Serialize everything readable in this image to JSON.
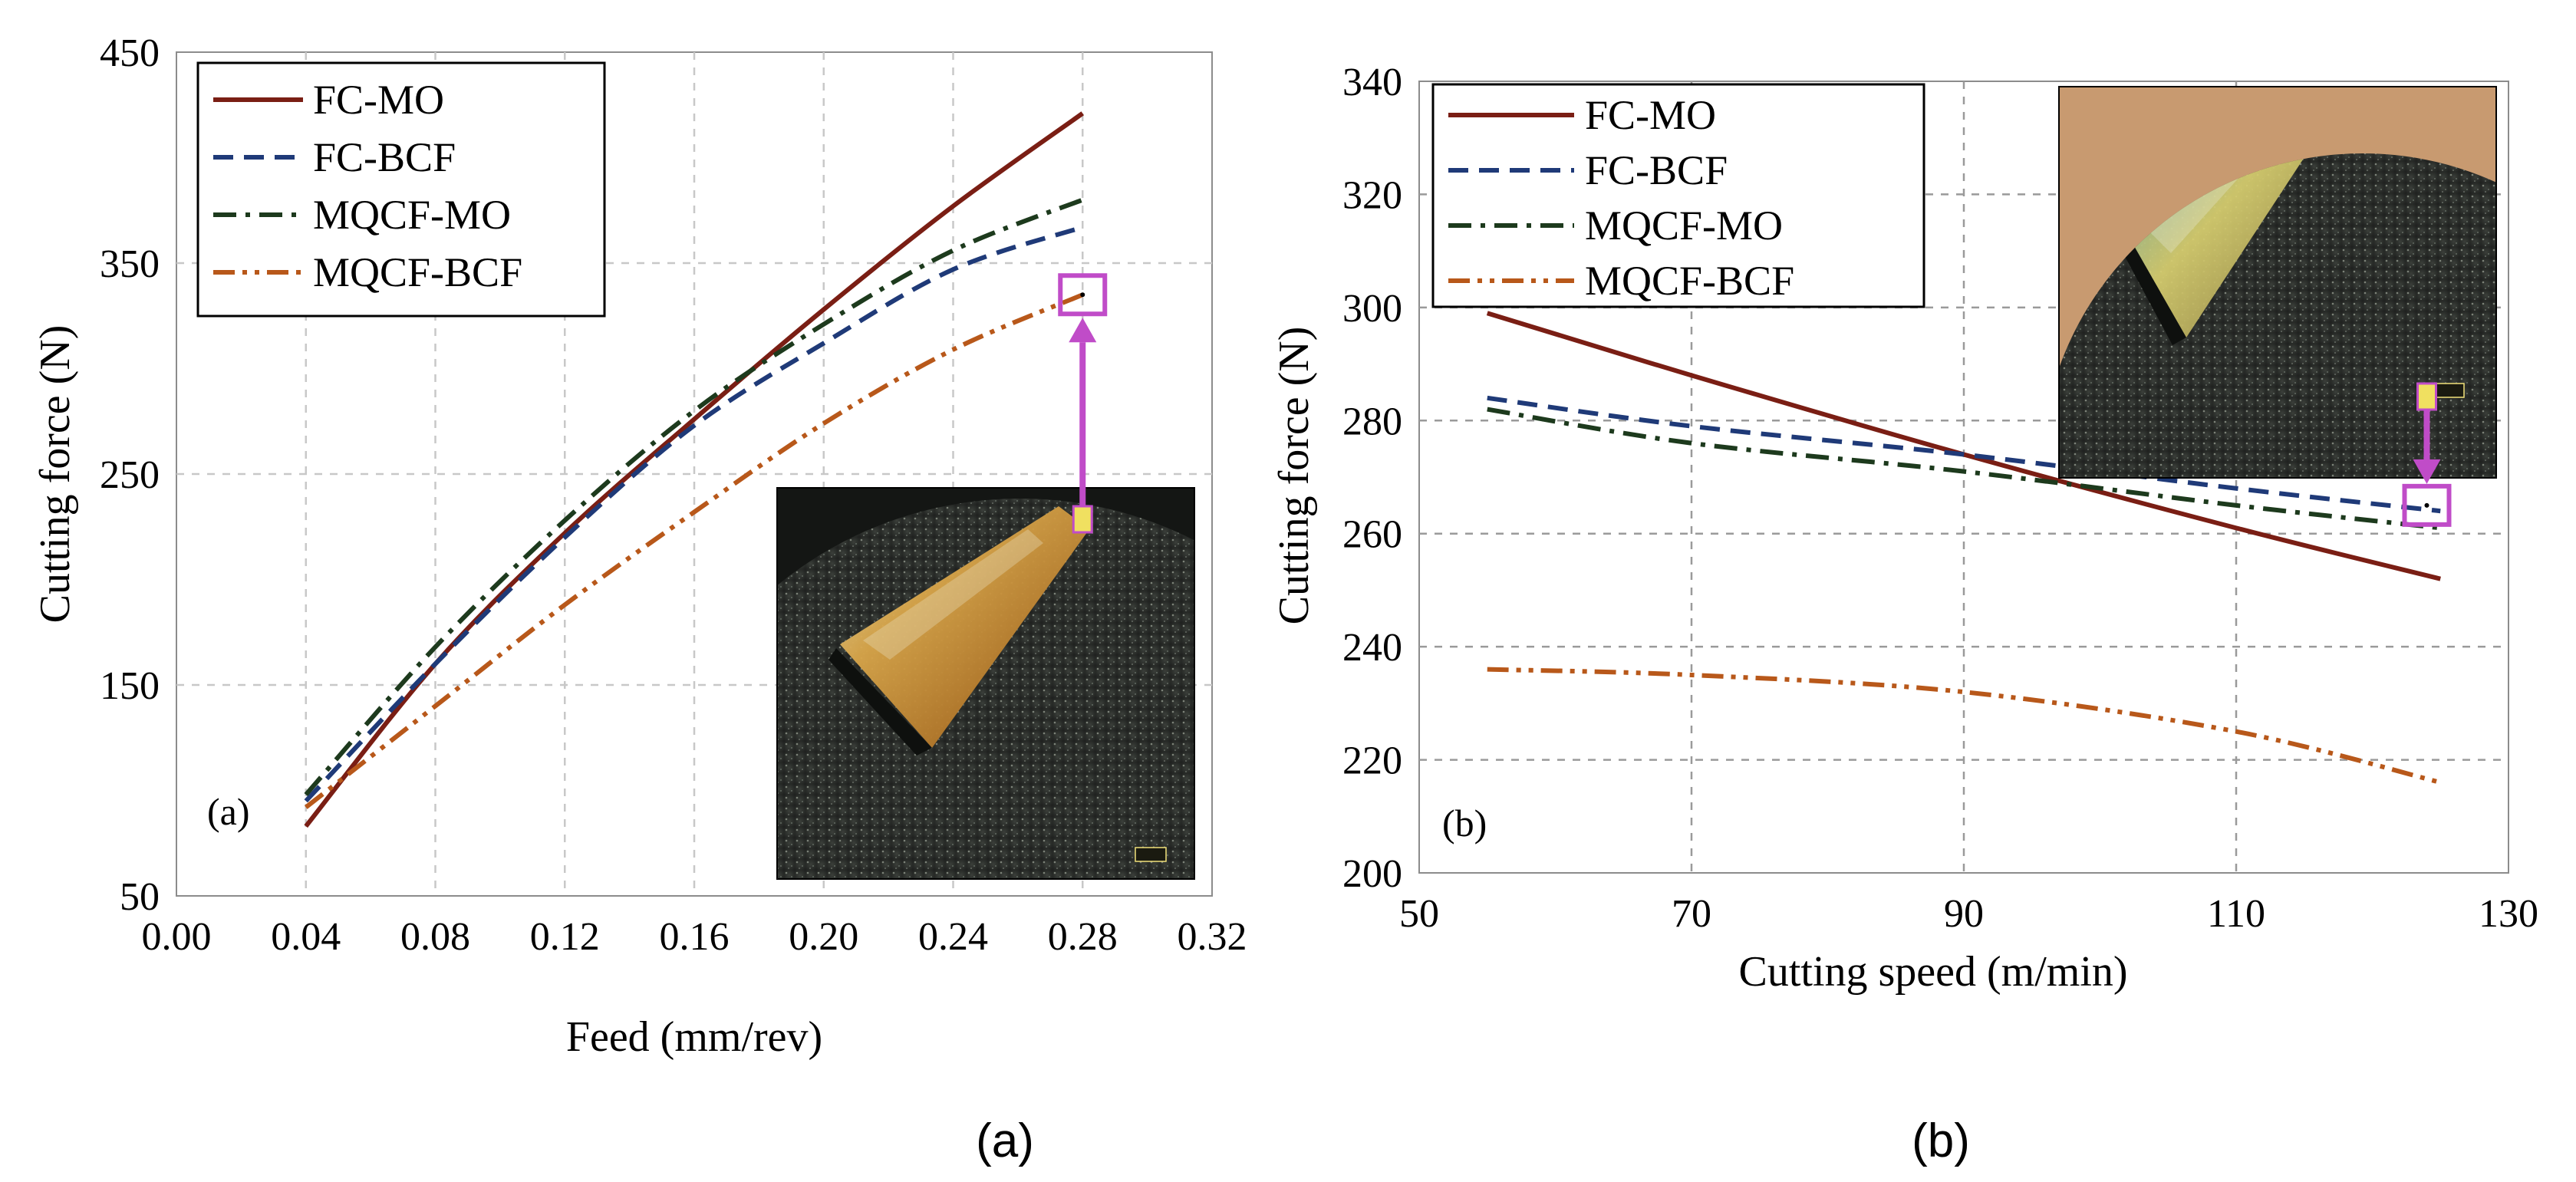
{
  "chart_data": [
    {
      "type": "line",
      "panel_label": "(a)",
      "caption": "(a)",
      "xlabel": "Feed (mm/rev)",
      "ylabel": "Cutting force (N)",
      "xlim": [
        0.0,
        0.32
      ],
      "ylim": [
        50,
        450
      ],
      "xticks": [
        0.0,
        0.04,
        0.08,
        0.12,
        0.16,
        0.2,
        0.24,
        0.28,
        0.32
      ],
      "xtick_labels": [
        "0.00",
        "0.04",
        "0.08",
        "0.12",
        "0.16",
        "0.20",
        "0.24",
        "0.28",
        "0.32"
      ],
      "yticks": [
        50,
        150,
        250,
        350,
        450
      ],
      "ytick_labels": [
        "50",
        "150",
        "250",
        "350",
        "450"
      ],
      "grid": true,
      "legend_position": "top-left",
      "x": [
        0.04,
        0.08,
        0.12,
        0.16,
        0.2,
        0.24,
        0.28
      ],
      "series": [
        {
          "name": "FC-MO",
          "values": [
            83,
            160,
            222,
            276,
            328,
            377,
            421
          ],
          "color": "#7a1e14",
          "dash": "solid"
        },
        {
          "name": "FC-BCF",
          "values": [
            95,
            160,
            220,
            273,
            312,
            347,
            367
          ],
          "color": "#1f3a78",
          "dash": "dash"
        },
        {
          "name": "MQCF-MO",
          "values": [
            98,
            168,
            228,
            280,
            321,
            356,
            380
          ],
          "color": "#1d3a1d",
          "dash": "dashdot"
        },
        {
          "name": "MQCF-BCF",
          "values": [
            92,
            140,
            188,
            232,
            274,
            309,
            335
          ],
          "color": "#b8581a",
          "dash": "dashdotdot"
        }
      ],
      "highlight_point": {
        "x": 0.28,
        "y": 335
      },
      "inset": {
        "description_colors": [
          "#2a2c2a",
          "#d2a24a",
          "#6aa0a8"
        ],
        "highlight_color": "#c04cc8"
      }
    },
    {
      "type": "line",
      "panel_label": "(b)",
      "caption": "(b)",
      "xlabel": "Cutting speed (m/min)",
      "ylabel": "Cutting force (N)",
      "xlim": [
        50,
        130
      ],
      "ylim": [
        200,
        340
      ],
      "xticks": [
        50,
        70,
        90,
        110,
        130
      ],
      "xtick_labels": [
        "50",
        "70",
        "90",
        "110",
        "130"
      ],
      "yticks": [
        200,
        220,
        240,
        260,
        280,
        300,
        320,
        340
      ],
      "ytick_labels": [
        "200",
        "220",
        "240",
        "260",
        "280",
        "300",
        "320",
        "340"
      ],
      "grid": true,
      "legend_position": "top-left",
      "x": [
        55,
        70,
        90,
        110,
        125
      ],
      "series": [
        {
          "name": "FC-MO",
          "values": [
            299,
            288,
            274,
            261,
            252
          ],
          "color": "#7a1e14",
          "dash": "solid"
        },
        {
          "name": "FC-BCF",
          "values": [
            284,
            279,
            274,
            268,
            264
          ],
          "color": "#1f3a78",
          "dash": "dash"
        },
        {
          "name": "MQCF-MO",
          "values": [
            282,
            276,
            271,
            265,
            261
          ],
          "color": "#1d3a1d",
          "dash": "dashdot"
        },
        {
          "name": "MQCF-BCF",
          "values": [
            236,
            235,
            232,
            225,
            216
          ],
          "color": "#b8581a",
          "dash": "dashdotdot"
        }
      ],
      "highlight_point": {
        "x": 124,
        "y": 265
      },
      "inset": {
        "description_colors": [
          "#2a2c2a",
          "#c8a060",
          "#5fa6b0"
        ],
        "highlight_color": "#c04cc8"
      }
    }
  ]
}
